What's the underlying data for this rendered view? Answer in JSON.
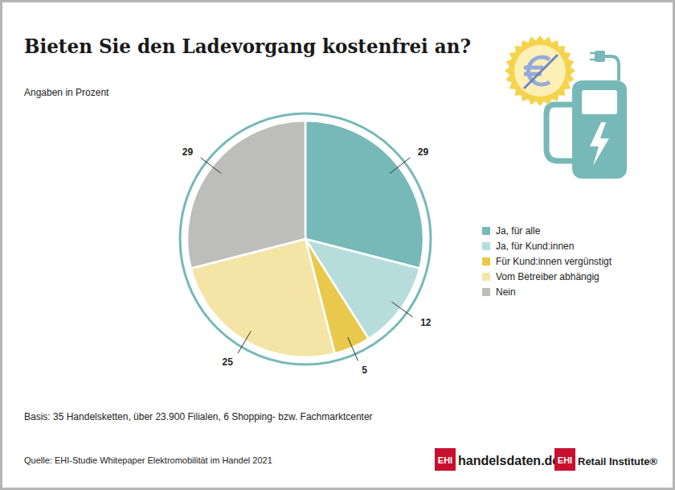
{
  "chart_data": {
    "type": "pie",
    "title": "Bieten Sie den Ladevorgang kostenfrei an?",
    "subtitle": "Angaben in Prozent",
    "categories": [
      "Ja, für alle",
      "Ja, für Kund:innen",
      "Für Kund:innen vergünstigt",
      "Vom Betreiber abhängig",
      "Nein"
    ],
    "values": [
      29,
      12,
      5,
      25,
      29
    ],
    "colors": [
      "#76b9b8",
      "#b7dcdc",
      "#e8c94b",
      "#f4e4a6",
      "#bdbdbc"
    ],
    "data_labels": true,
    "legend": "right",
    "basis": "Basis: 35 Handelsketten, über 23.900 Filialen, 6 Shopping- bzw. Fachmarktcenter",
    "source": "Quelle: EHI-Studie Whitepaper Elektromobilität im Handel 2021",
    "logos": [
      {
        "mark": "EHI",
        "text": "handelsdaten.de"
      },
      {
        "mark": "EHI",
        "text": "Retail Institute®"
      }
    ]
  }
}
